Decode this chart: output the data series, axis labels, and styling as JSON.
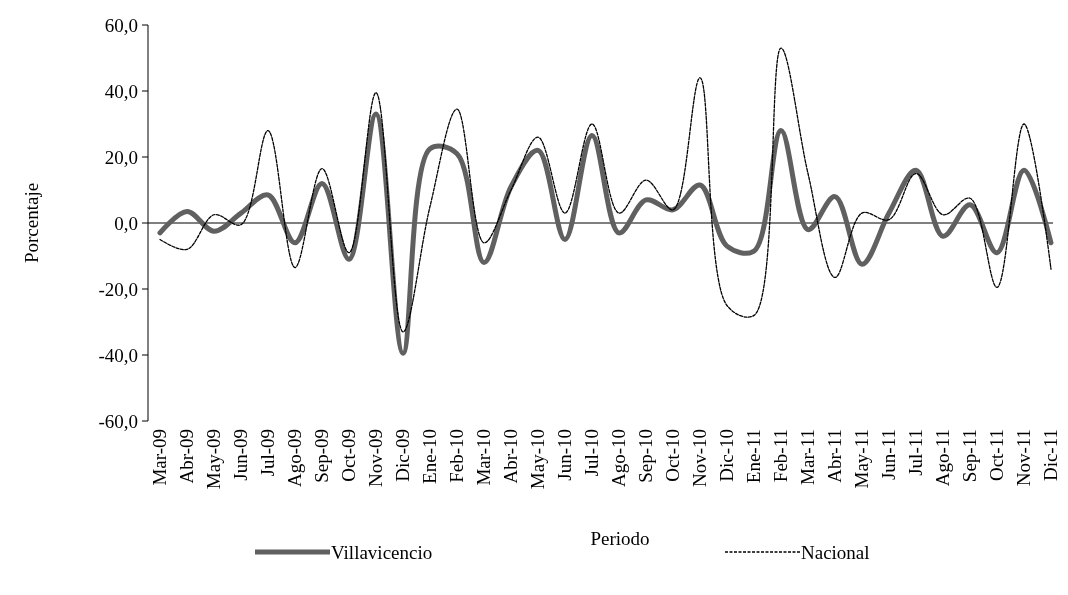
{
  "chart_data": {
    "type": "line",
    "xlabel": "Periodo",
    "ylabel": "Porcentaje",
    "categories": [
      "Mar-09",
      "Abr-09",
      "May-09",
      "Jun-09",
      "Jul-09",
      "Ago-09",
      "Sep-09",
      "Oct-09",
      "Nov-09",
      "Dic-09",
      "Ene-10",
      "Feb-10",
      "Mar-10",
      "Abr-10",
      "May-10",
      "Jun-10",
      "Jul-10",
      "Ago-10",
      "Sep-10",
      "Oct-10",
      "Nov-10",
      "Dic-10",
      "Ene-11",
      "Feb-11",
      "Mar-11",
      "Abr-11",
      "May-11",
      "Jun-11",
      "Jul-11",
      "Ago-11",
      "Sep-11",
      "Oct-11",
      "Nov-11",
      "Dic-11"
    ],
    "series": [
      {
        "name": "Villavicencio",
        "color": "#606060",
        "line_style": "solid",
        "values": [
          -3,
          3.5,
          -2.5,
          3,
          8.5,
          -6,
          12,
          -11,
          33,
          -39.5,
          22.5,
          21,
          -12,
          11,
          22,
          -5,
          26.5,
          -3,
          7,
          4,
          11.5,
          -7,
          -8.5,
          28,
          -2,
          8,
          -12.5,
          3,
          16,
          -4,
          5.5,
          -9,
          16,
          -6
        ]
      },
      {
        "name": "Nacional",
        "color": "#000000",
        "line_style": "dashed",
        "values": [
          -5,
          -8,
          2.5,
          -0.5,
          28,
          -13.5,
          16.5,
          -9,
          39.5,
          -33,
          5,
          34.5,
          -6,
          10,
          26,
          3,
          30,
          3,
          13,
          4,
          44,
          -25,
          -28,
          53,
          15,
          -16.5,
          3,
          1,
          15,
          2.5,
          7.5,
          -19.5,
          30,
          -14
        ]
      }
    ],
    "ylim": [
      -60,
      60
    ],
    "yticks": [
      {
        "value": -60,
        "label": "-60,0"
      },
      {
        "value": -40,
        "label": "-40,0"
      },
      {
        "value": -20,
        "label": "-20,0"
      },
      {
        "value": 0,
        "label": "0,0"
      },
      {
        "value": 20,
        "label": "20,0"
      },
      {
        "value": 40,
        "label": "40,0"
      },
      {
        "value": 60,
        "label": "60,0"
      }
    ],
    "legend": "bottom",
    "marker": "none"
  }
}
